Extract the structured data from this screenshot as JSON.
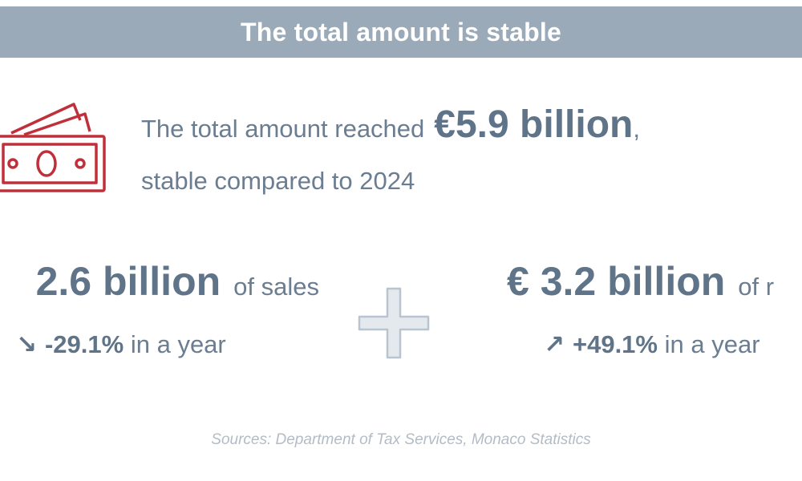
{
  "header": {
    "title": "The total amount is stable"
  },
  "total": {
    "prefix": "The total amount reached",
    "amount": "€5.9 billion",
    "comma": ",",
    "line2": "stable compared to 2024"
  },
  "sales": {
    "amount": "2.6 billion",
    "suffix": "of sales",
    "arrow": "↘",
    "change": "-29.1%",
    "change_suffix": "in a year"
  },
  "other": {
    "amount": "€ 3.2 billion",
    "suffix": "of r",
    "arrow": "↗",
    "change": "+49.1%",
    "change_suffix": "in a year"
  },
  "footer": {
    "sources": "Sources: Department of Tax Services, Monaco Statistics"
  },
  "colors": {
    "header_bar": "#9aaab8",
    "text": "#6b7d90",
    "icon_red": "#c0303a",
    "plus_fill": "#e4e9ee",
    "plus_stroke": "#b8c4cf"
  },
  "icons": {
    "money": "money-bills-icon",
    "plus": "plus-icon"
  }
}
